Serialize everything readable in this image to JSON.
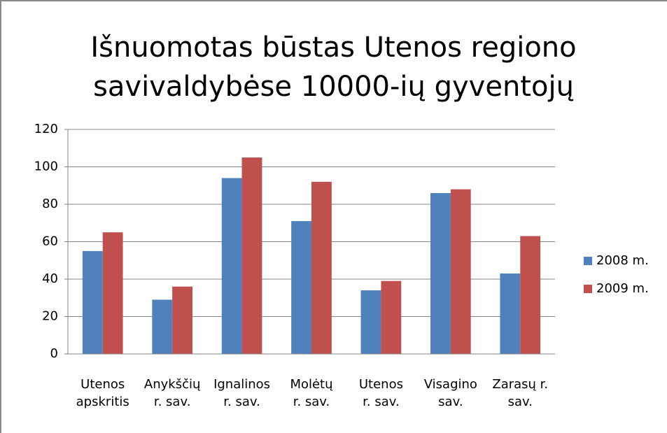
{
  "chart_data": {
    "type": "bar",
    "title": "Išnuomotas būstas Utenos regiono\nsavivaldybėse 10000-ių gyventojų",
    "categories": [
      "Utenos\napskritis",
      "Anykščių\nr. sav.",
      "Ignalinos\nr. sav.",
      "Molėtų\nr. sav.",
      "Utenos\nr. sav.",
      "Visagino\nsav.",
      "Zarasų r.\nsav."
    ],
    "series": [
      {
        "name": "2008 m.",
        "color": "#4f81bd",
        "values": [
          55,
          29,
          94,
          71,
          34,
          86,
          43
        ]
      },
      {
        "name": "2009 m.",
        "color": "#c0504d",
        "values": [
          65,
          36,
          105,
          92,
          39,
          88,
          63
        ]
      }
    ],
    "ylim": [
      0,
      120
    ],
    "yticks": [
      0,
      20,
      40,
      60,
      80,
      100,
      120
    ],
    "grid": true,
    "legend": "right"
  }
}
